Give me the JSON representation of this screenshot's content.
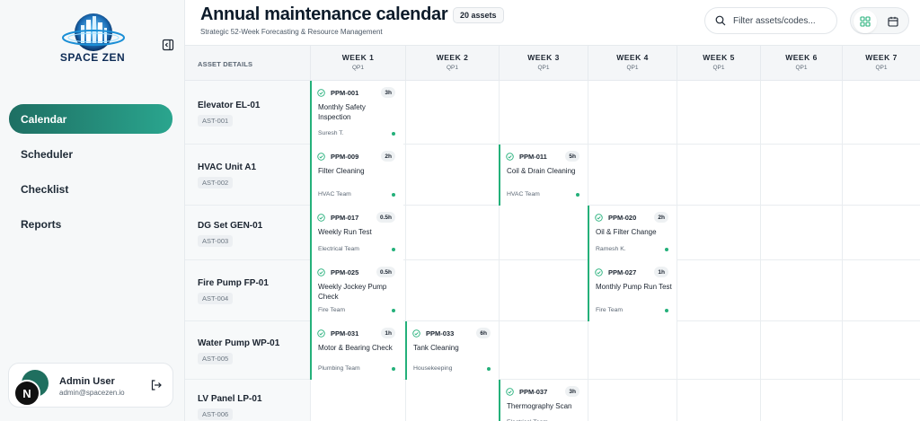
{
  "app": {
    "brand": "SPACE ZEN",
    "accent": "#24b07a",
    "nav_active_color": "#1e6f63"
  },
  "sidebar": {
    "items": [
      {
        "label": "Calendar",
        "active": true
      },
      {
        "label": "Scheduler",
        "active": false
      },
      {
        "label": "Checklist",
        "active": false
      },
      {
        "label": "Reports",
        "active": false
      }
    ],
    "user": {
      "name": "Admin User",
      "email": "admin@spacezen.io",
      "avatar_letter": "N"
    }
  },
  "header": {
    "title": "Annual maintenance calendar",
    "asset_count": "20 assets",
    "subtitle": "Strategic 52-Week Forecasting & Resource Management",
    "search_placeholder": "Filter assets/codes..."
  },
  "grid": {
    "asset_column_label": "ASSET DETAILS",
    "weeks": [
      {
        "label": "WEEK 1",
        "quarter": "QP1"
      },
      {
        "label": "WEEK 2",
        "quarter": "QP1"
      },
      {
        "label": "WEEK 3",
        "quarter": "QP1"
      },
      {
        "label": "WEEK 4",
        "quarter": "QP1"
      },
      {
        "label": "WEEK 5",
        "quarter": "QP1"
      },
      {
        "label": "WEEK 6",
        "quarter": "QP1"
      },
      {
        "label": "WEEK 7",
        "quarter": "QP1"
      }
    ],
    "assets": [
      {
        "name": "Elevator EL-01",
        "code": "AST-001"
      },
      {
        "name": "HVAC Unit A1",
        "code": "AST-002"
      },
      {
        "name": "DG Set GEN-01",
        "code": "AST-003"
      },
      {
        "name": "Fire Pump FP-01",
        "code": "AST-004"
      },
      {
        "name": "Water Pump WP-01",
        "code": "AST-005"
      },
      {
        "name": "LV Panel LP-01",
        "code": "AST-006"
      }
    ],
    "tasks": [
      {
        "asset": 0,
        "week": 1,
        "code": "PPM-001",
        "hours": "3h",
        "title": "Monthly Safety Inspection",
        "team": "Suresh T."
      },
      {
        "asset": 1,
        "week": 1,
        "code": "PPM-009",
        "hours": "2h",
        "title": "Filter Cleaning",
        "team": "HVAC Team"
      },
      {
        "asset": 1,
        "week": 3,
        "code": "PPM-011",
        "hours": "5h",
        "title": "Coil & Drain Cleaning",
        "team": "HVAC Team"
      },
      {
        "asset": 2,
        "week": 1,
        "code": "PPM-017",
        "hours": "0.5h",
        "title": "Weekly Run Test",
        "team": "Electrical Team"
      },
      {
        "asset": 2,
        "week": 4,
        "code": "PPM-020",
        "hours": "2h",
        "title": "Oil & Filter Change",
        "team": "Ramesh K."
      },
      {
        "asset": 3,
        "week": 1,
        "code": "PPM-025",
        "hours": "0.5h",
        "title": "Weekly Jockey Pump Check",
        "team": "Fire Team"
      },
      {
        "asset": 3,
        "week": 4,
        "code": "PPM-027",
        "hours": "1h",
        "title": "Monthly Pump Run Test",
        "team": "Fire Team"
      },
      {
        "asset": 4,
        "week": 1,
        "code": "PPM-031",
        "hours": "1h",
        "title": "Motor & Bearing Check",
        "team": "Plumbing Team"
      },
      {
        "asset": 4,
        "week": 2,
        "code": "PPM-033",
        "hours": "6h",
        "title": "Tank Cleaning",
        "team": "Housekeeping"
      },
      {
        "asset": 5,
        "week": 3,
        "code": "PPM-037",
        "hours": "3h",
        "title": "Thermography Scan",
        "team": "Electrical Team"
      }
    ]
  }
}
